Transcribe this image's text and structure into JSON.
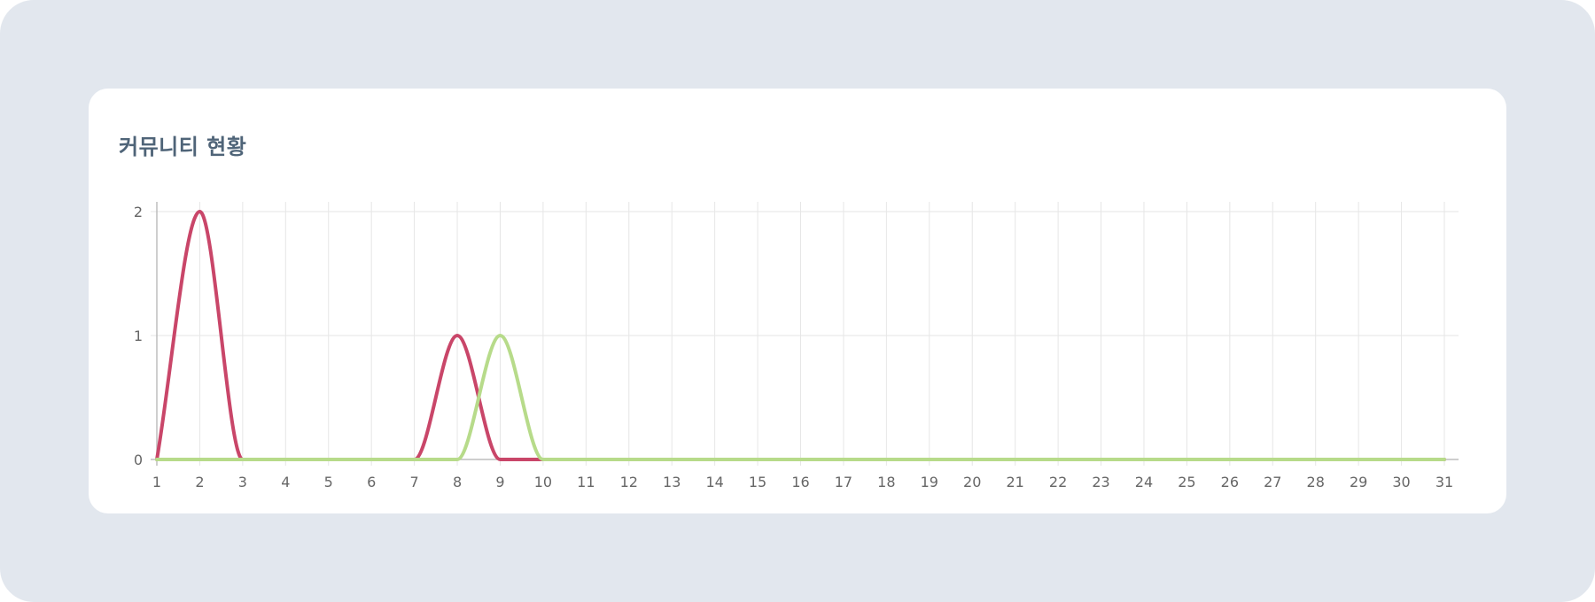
{
  "card": {
    "title": "커뮤니티 현황"
  },
  "chart_data": {
    "type": "line",
    "title": "커뮤니티 현황",
    "xlabel": "",
    "ylabel": "",
    "x": [
      1,
      2,
      3,
      4,
      5,
      6,
      7,
      8,
      9,
      10,
      11,
      12,
      13,
      14,
      15,
      16,
      17,
      18,
      19,
      20,
      21,
      22,
      23,
      24,
      25,
      26,
      27,
      28,
      29,
      30,
      31
    ],
    "ylim": [
      0,
      2
    ],
    "yticks": [
      0,
      1,
      2
    ],
    "grid": true,
    "legend": "none",
    "series": [
      {
        "color": "#c94669",
        "values": [
          0,
          2,
          0,
          0,
          0,
          0,
          0,
          1,
          0,
          0,
          0,
          0,
          0,
          0,
          0,
          0,
          0,
          0,
          0,
          0,
          0,
          0,
          0,
          0,
          0,
          0,
          0,
          0,
          0,
          0,
          0
        ]
      },
      {
        "color": "#b7db8a",
        "values": [
          0,
          0,
          0,
          0,
          0,
          0,
          0,
          0,
          1,
          0,
          0,
          0,
          0,
          0,
          0,
          0,
          0,
          0,
          0,
          0,
          0,
          0,
          0,
          0,
          0,
          0,
          0,
          0,
          0,
          0,
          0
        ]
      }
    ]
  }
}
